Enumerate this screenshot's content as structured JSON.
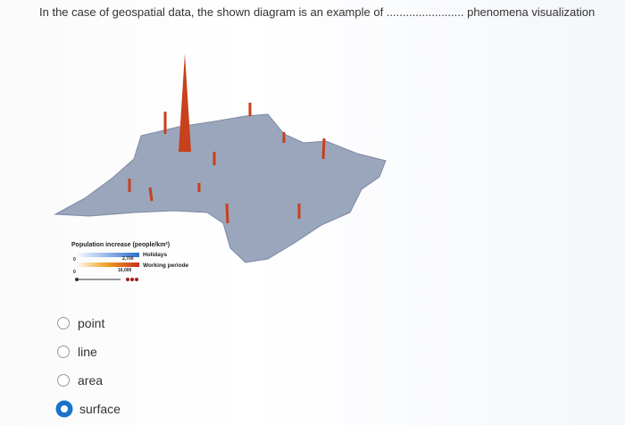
{
  "question": "In the case of geospatial data, the shown diagram is an example of ........................ phenomena visualization",
  "figure": {
    "legend_title": "Population increase (people/km²)",
    "scale_1": {
      "min": "0",
      "max": "2,700",
      "label": "Holidays"
    },
    "scale_2": {
      "min": "0",
      "max": "16,000",
      "label": "Working periode"
    }
  },
  "options": [
    {
      "label": "point",
      "checked": false
    },
    {
      "label": "line",
      "checked": false
    },
    {
      "label": "area",
      "checked": false
    },
    {
      "label": "surface",
      "checked": true
    }
  ]
}
